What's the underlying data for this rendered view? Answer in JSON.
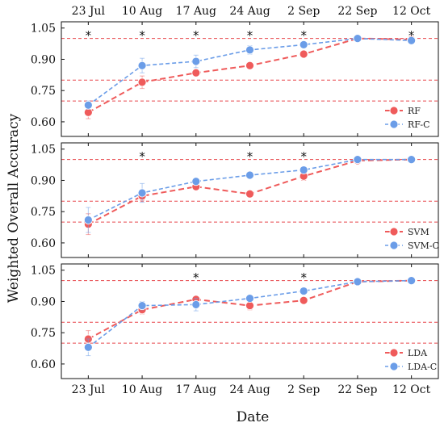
{
  "chart_data": {
    "type": "line",
    "xlabel": "Date",
    "ylabel": "Weighted Overall Accuracy",
    "categories": [
      "23 Jul",
      "10 Aug",
      "17 Aug",
      "24 Aug",
      "2 Sep",
      "22 Sep",
      "12 Oct"
    ],
    "ylim": [
      0.53,
      1.08
    ],
    "yticks": [
      "0.60",
      "0.75",
      "0.90",
      "1.05"
    ],
    "reference_lines": [
      0.7,
      0.8,
      1.0
    ],
    "colors": {
      "base": "#ef5b5b",
      "calibrated": "#6b9de8",
      "reference": "#e8474c"
    },
    "panels": [
      {
        "series": [
          {
            "name": "RF",
            "values": [
              0.645,
              0.79,
              0.835,
              0.87,
              0.925,
              1.0,
              0.995
            ],
            "errors": [
              0.03,
              0.03,
              0.015,
              0.01,
              0.01,
              0.005,
              0.005
            ]
          },
          {
            "name": "RF-C",
            "values": [
              0.68,
              0.87,
              0.89,
              0.945,
              0.97,
              1.0,
              0.99
            ],
            "errors": [
              0.02,
              0.035,
              0.03,
              0.02,
              0.015,
              0.005,
              0.01
            ]
          }
        ],
        "significant": [
          "23 Jul",
          "10 Aug",
          "17 Aug",
          "24 Aug",
          "2 Sep",
          "12 Oct"
        ],
        "significance_mark": "*"
      },
      {
        "series": [
          {
            "name": "SVM",
            "values": [
              0.69,
              0.825,
              0.87,
              0.835,
              0.92,
              0.995,
              1.0
            ],
            "errors": [
              0.05,
              0.02,
              0.01,
              0.01,
              0.02,
              0.005,
              0.005
            ]
          },
          {
            "name": "SVM-C",
            "values": [
              0.71,
              0.84,
              0.895,
              0.925,
              0.95,
              1.0,
              1.0
            ],
            "errors": [
              0.06,
              0.045,
              0.015,
              0.01,
              0.015,
              0.005,
              0.005
            ]
          }
        ],
        "significant": [
          "10 Aug",
          "24 Aug",
          "2 Sep"
        ],
        "significance_mark": "*"
      },
      {
        "series": [
          {
            "name": "LDA",
            "values": [
              0.72,
              0.86,
              0.91,
              0.88,
              0.905,
              0.995,
              1.0
            ],
            "errors": [
              0.04,
              0.02,
              0.015,
              0.02,
              0.01,
              0.005,
              0.005
            ]
          },
          {
            "name": "LDA-C",
            "values": [
              0.68,
              0.88,
              0.885,
              0.915,
              0.95,
              0.995,
              1.0
            ],
            "errors": [
              0.04,
              0.02,
              0.03,
              0.015,
              0.015,
              0.005,
              0.005
            ]
          }
        ],
        "significant": [
          "17 Aug",
          "2 Sep"
        ],
        "significance_mark": "*"
      }
    ]
  }
}
